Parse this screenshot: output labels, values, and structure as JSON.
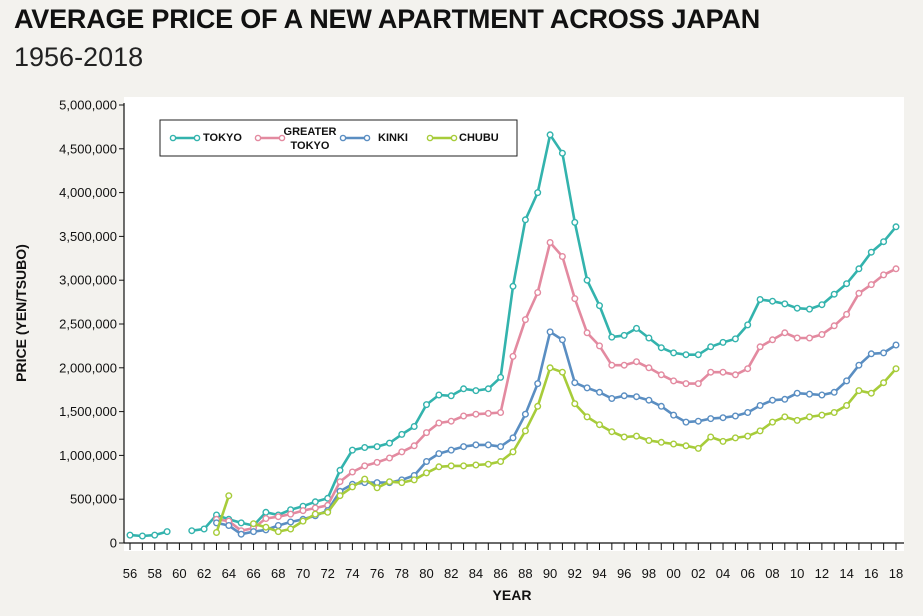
{
  "chart_data": {
    "type": "line",
    "title": "AVERAGE PRICE OF A NEW APARTMENT ACROSS JAPAN",
    "subtitle": "1956-2018",
    "xlabel": "YEAR",
    "ylabel": "PRICE (YEN/TSUBO)",
    "ylim": [
      0,
      5000000
    ],
    "xlim": [
      1956,
      2018
    ],
    "y_ticks": [
      0,
      500000,
      1000000,
      1500000,
      2000000,
      2500000,
      3000000,
      3500000,
      4000000,
      4500000,
      5000000
    ],
    "y_tick_labels": [
      "0",
      "500,000",
      "1,000,000",
      "1,500,000",
      "2,000,000",
      "2,500,000",
      "3,000,000",
      "3,500,000",
      "4,000,000",
      "4,500,000",
      "5,000,000"
    ],
    "x_tick_labels": [
      "56",
      "58",
      "60",
      "62",
      "64",
      "66",
      "68",
      "70",
      "72",
      "74",
      "76",
      "78",
      "80",
      "82",
      "84",
      "86",
      "88",
      "90",
      "92",
      "94",
      "96",
      "98",
      "00",
      "02",
      "04",
      "06",
      "08",
      "10",
      "12",
      "14",
      "16",
      "18"
    ],
    "grid": false,
    "legend_position": "top-left",
    "series": [
      {
        "name": "TOKYO",
        "color": "#33b3ad",
        "points": [
          [
            1956,
            90000
          ],
          [
            1957,
            80000
          ],
          [
            1958,
            90000
          ],
          [
            1959,
            130000
          ],
          [
            1961,
            140000
          ],
          [
            1962,
            160000
          ],
          [
            1963,
            320000
          ],
          [
            1964,
            270000
          ],
          [
            1965,
            230000
          ],
          [
            1966,
            200000
          ],
          [
            1967,
            350000
          ],
          [
            1968,
            320000
          ],
          [
            1969,
            380000
          ],
          [
            1970,
            420000
          ],
          [
            1971,
            470000
          ],
          [
            1972,
            510000
          ],
          [
            1973,
            830000
          ],
          [
            1974,
            1060000
          ],
          [
            1975,
            1090000
          ],
          [
            1976,
            1100000
          ],
          [
            1977,
            1140000
          ],
          [
            1978,
            1240000
          ],
          [
            1979,
            1330000
          ],
          [
            1980,
            1580000
          ],
          [
            1981,
            1690000
          ],
          [
            1982,
            1680000
          ],
          [
            1983,
            1760000
          ],
          [
            1984,
            1740000
          ],
          [
            1985,
            1760000
          ],
          [
            1986,
            1890000
          ],
          [
            1987,
            2930000
          ],
          [
            1988,
            3690000
          ],
          [
            1989,
            4000000
          ],
          [
            1990,
            4660000
          ],
          [
            1991,
            4450000
          ],
          [
            1992,
            3660000
          ],
          [
            1993,
            3000000
          ],
          [
            1994,
            2710000
          ],
          [
            1995,
            2350000
          ],
          [
            1996,
            2370000
          ],
          [
            1997,
            2450000
          ],
          [
            1998,
            2340000
          ],
          [
            1999,
            2230000
          ],
          [
            2000,
            2170000
          ],
          [
            2001,
            2150000
          ],
          [
            2002,
            2150000
          ],
          [
            2003,
            2240000
          ],
          [
            2004,
            2290000
          ],
          [
            2005,
            2330000
          ],
          [
            2006,
            2490000
          ],
          [
            2007,
            2780000
          ],
          [
            2008,
            2760000
          ],
          [
            2009,
            2730000
          ],
          [
            2010,
            2680000
          ],
          [
            2011,
            2670000
          ],
          [
            2012,
            2720000
          ],
          [
            2013,
            2840000
          ],
          [
            2014,
            2960000
          ],
          [
            2015,
            3130000
          ],
          [
            2016,
            3320000
          ],
          [
            2017,
            3440000
          ],
          [
            2018,
            3610000
          ]
        ]
      },
      {
        "name": "GREATER TOKYO",
        "color": "#e38aa0",
        "points": [
          [
            1963,
            270000
          ],
          [
            1964,
            250000
          ],
          [
            1965,
            140000
          ],
          [
            1966,
            170000
          ],
          [
            1967,
            280000
          ],
          [
            1968,
            300000
          ],
          [
            1969,
            330000
          ],
          [
            1970,
            370000
          ],
          [
            1971,
            400000
          ],
          [
            1972,
            430000
          ],
          [
            1973,
            700000
          ],
          [
            1974,
            810000
          ],
          [
            1975,
            880000
          ],
          [
            1976,
            920000
          ],
          [
            1977,
            970000
          ],
          [
            1978,
            1040000
          ],
          [
            1979,
            1110000
          ],
          [
            1980,
            1260000
          ],
          [
            1981,
            1370000
          ],
          [
            1982,
            1390000
          ],
          [
            1983,
            1450000
          ],
          [
            1984,
            1470000
          ],
          [
            1985,
            1480000
          ],
          [
            1986,
            1490000
          ],
          [
            1987,
            2130000
          ],
          [
            1988,
            2550000
          ],
          [
            1989,
            2860000
          ],
          [
            1990,
            3430000
          ],
          [
            1991,
            3270000
          ],
          [
            1992,
            2790000
          ],
          [
            1993,
            2400000
          ],
          [
            1994,
            2250000
          ],
          [
            1995,
            2030000
          ],
          [
            1996,
            2030000
          ],
          [
            1997,
            2070000
          ],
          [
            1998,
            2000000
          ],
          [
            1999,
            1920000
          ],
          [
            2000,
            1850000
          ],
          [
            2001,
            1820000
          ],
          [
            2002,
            1820000
          ],
          [
            2003,
            1950000
          ],
          [
            2004,
            1950000
          ],
          [
            2005,
            1920000
          ],
          [
            2006,
            1990000
          ],
          [
            2007,
            2240000
          ],
          [
            2008,
            2320000
          ],
          [
            2009,
            2400000
          ],
          [
            2010,
            2340000
          ],
          [
            2011,
            2340000
          ],
          [
            2012,
            2380000
          ],
          [
            2013,
            2480000
          ],
          [
            2014,
            2610000
          ],
          [
            2015,
            2850000
          ],
          [
            2016,
            2950000
          ],
          [
            2017,
            3060000
          ],
          [
            2018,
            3130000
          ]
        ]
      },
      {
        "name": "KINKI",
        "color": "#5a8ec2",
        "points": [
          [
            1963,
            230000
          ],
          [
            1964,
            200000
          ],
          [
            1965,
            100000
          ],
          [
            1966,
            130000
          ],
          [
            1967,
            150000
          ],
          [
            1968,
            200000
          ],
          [
            1969,
            240000
          ],
          [
            1970,
            270000
          ],
          [
            1971,
            310000
          ],
          [
            1972,
            370000
          ],
          [
            1973,
            590000
          ],
          [
            1974,
            670000
          ],
          [
            1975,
            690000
          ],
          [
            1976,
            690000
          ],
          [
            1977,
            690000
          ],
          [
            1978,
            720000
          ],
          [
            1979,
            770000
          ],
          [
            1980,
            930000
          ],
          [
            1981,
            1020000
          ],
          [
            1982,
            1060000
          ],
          [
            1983,
            1100000
          ],
          [
            1984,
            1120000
          ],
          [
            1985,
            1120000
          ],
          [
            1986,
            1100000
          ],
          [
            1987,
            1200000
          ],
          [
            1988,
            1470000
          ],
          [
            1989,
            1820000
          ],
          [
            1990,
            2410000
          ],
          [
            1991,
            2320000
          ],
          [
            1992,
            1830000
          ],
          [
            1993,
            1770000
          ],
          [
            1994,
            1720000
          ],
          [
            1995,
            1650000
          ],
          [
            1996,
            1680000
          ],
          [
            1997,
            1670000
          ],
          [
            1998,
            1630000
          ],
          [
            1999,
            1560000
          ],
          [
            2000,
            1460000
          ],
          [
            2001,
            1380000
          ],
          [
            2002,
            1390000
          ],
          [
            2003,
            1420000
          ],
          [
            2004,
            1430000
          ],
          [
            2005,
            1450000
          ],
          [
            2006,
            1490000
          ],
          [
            2007,
            1570000
          ],
          [
            2008,
            1630000
          ],
          [
            2009,
            1640000
          ],
          [
            2010,
            1710000
          ],
          [
            2011,
            1700000
          ],
          [
            2012,
            1690000
          ],
          [
            2013,
            1720000
          ],
          [
            2014,
            1850000
          ],
          [
            2015,
            2030000
          ],
          [
            2016,
            2160000
          ],
          [
            2017,
            2170000
          ],
          [
            2018,
            2260000
          ]
        ]
      },
      {
        "name": "CHUBU",
        "color": "#a7cc3a",
        "points": [
          [
            1963,
            120000
          ],
          [
            1964,
            540000
          ],
          [
            1966,
            220000
          ],
          [
            1967,
            180000
          ],
          [
            1968,
            130000
          ],
          [
            1969,
            160000
          ],
          [
            1970,
            250000
          ],
          [
            1971,
            330000
          ],
          [
            1972,
            350000
          ],
          [
            1973,
            540000
          ],
          [
            1974,
            640000
          ],
          [
            1975,
            730000
          ],
          [
            1976,
            630000
          ],
          [
            1977,
            700000
          ],
          [
            1978,
            690000
          ],
          [
            1979,
            720000
          ],
          [
            1980,
            800000
          ],
          [
            1981,
            870000
          ],
          [
            1982,
            880000
          ],
          [
            1983,
            880000
          ],
          [
            1984,
            890000
          ],
          [
            1985,
            900000
          ],
          [
            1986,
            930000
          ],
          [
            1987,
            1040000
          ],
          [
            1988,
            1280000
          ],
          [
            1989,
            1560000
          ],
          [
            1990,
            2000000
          ],
          [
            1991,
            1950000
          ],
          [
            1992,
            1590000
          ],
          [
            1993,
            1440000
          ],
          [
            1994,
            1350000
          ],
          [
            1995,
            1270000
          ],
          [
            1996,
            1210000
          ],
          [
            1997,
            1220000
          ],
          [
            1998,
            1170000
          ],
          [
            1999,
            1150000
          ],
          [
            2000,
            1130000
          ],
          [
            2001,
            1110000
          ],
          [
            2002,
            1080000
          ],
          [
            2003,
            1210000
          ],
          [
            2004,
            1160000
          ],
          [
            2005,
            1200000
          ],
          [
            2006,
            1220000
          ],
          [
            2007,
            1280000
          ],
          [
            2008,
            1380000
          ],
          [
            2009,
            1440000
          ],
          [
            2010,
            1400000
          ],
          [
            2011,
            1440000
          ],
          [
            2012,
            1460000
          ],
          [
            2013,
            1490000
          ],
          [
            2014,
            1570000
          ],
          [
            2015,
            1740000
          ],
          [
            2016,
            1710000
          ],
          [
            2017,
            1830000
          ],
          [
            2018,
            1990000
          ]
        ]
      }
    ]
  }
}
